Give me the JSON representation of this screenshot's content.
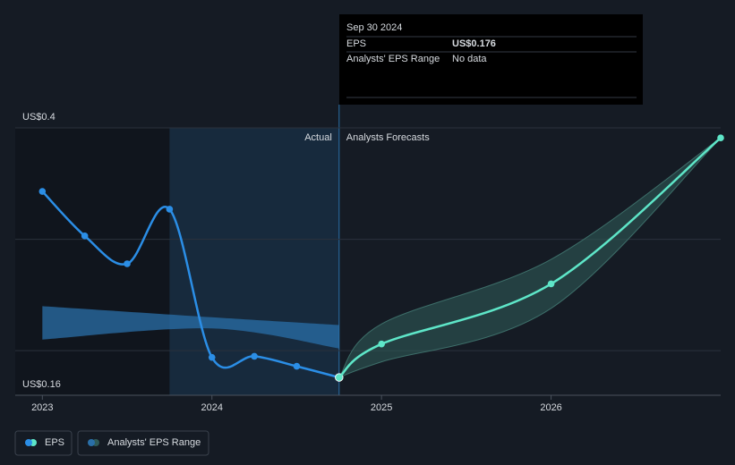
{
  "chart_data": {
    "type": "line",
    "xlim": [
      2022.84,
      2027.0
    ],
    "xticks": [
      2023,
      2024,
      2025,
      2026
    ],
    "ylim": [
      0.16,
      0.4
    ],
    "yticks": [
      {
        "value": 0.4,
        "label": "US$0.4"
      },
      {
        "value": 0.3,
        "label": null
      },
      {
        "value": 0.2,
        "label": null
      },
      {
        "value": 0.16,
        "label": "US$0.16"
      }
    ],
    "grid": true,
    "highlight": [
      2023.75,
      2024.75
    ],
    "actual_label": "Actual",
    "forecast_label": "Analysts Forecasts",
    "series": [
      {
        "name": "EPS",
        "color": "#2b8ee6",
        "x": [
          2023.0,
          2023.25,
          2023.5,
          2023.75,
          2024.0,
          2024.25,
          2024.5,
          2024.75
        ],
        "values": [
          0.343,
          0.303,
          0.278,
          0.327,
          0.194,
          0.195,
          0.186,
          0.176
        ]
      },
      {
        "color": "#5ee6c8",
        "x": [
          2024.75,
          2025.0,
          2026.0,
          2027.0
        ],
        "values": [
          0.176,
          0.206,
          0.26,
          0.391
        ]
      }
    ],
    "range": {
      "name": "Analysts' EPS Range",
      "past": {
        "color": "#2a6fa8",
        "x": [
          2023.0,
          2024.0,
          2024.75
        ],
        "low": [
          0.21,
          0.22,
          0.202
        ],
        "high": [
          0.24,
          0.23,
          0.223
        ]
      },
      "forecast": {
        "color": "#2f5a57",
        "x": [
          2024.75,
          2025.0,
          2026.0,
          2027.0
        ],
        "low": [
          0.176,
          0.19,
          0.238,
          0.391
        ],
        "high": [
          0.176,
          0.224,
          0.282,
          0.391
        ]
      }
    },
    "tooltip": {
      "date": "Sep 30 2024",
      "eps_label": "EPS",
      "eps_value": "US$0.176",
      "range_label": "Analysts' EPS Range",
      "range_value": "No data"
    }
  }
}
